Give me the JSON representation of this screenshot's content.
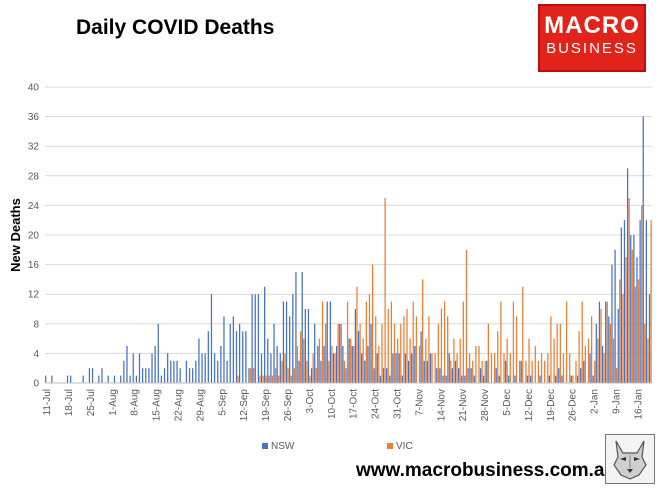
{
  "header": {
    "title": "Daily COVID Deaths"
  },
  "logo": {
    "line1": "MACRO",
    "line2": "BUSINESS"
  },
  "footer": {
    "website": "www.macrobusiness.com.au"
  },
  "colors": {
    "nsw": "#4472c4",
    "vic": "#ed7d31",
    "grid": "#d9d9d9",
    "axis": "#bfbfbf",
    "text": "#595959"
  },
  "chart_data": {
    "type": "bar",
    "ylabel": "New Deaths",
    "xlabel": "",
    "ylim": [
      0,
      40
    ],
    "yticks": [
      0,
      4,
      8,
      12,
      16,
      20,
      24,
      28,
      32,
      36,
      40
    ],
    "grid": true,
    "legend_position": "bottom",
    "start_date": "11-Jul",
    "days": 194,
    "xtick_labels": [
      "11-Jul",
      "18-Jul",
      "25-Jul",
      "1-Aug",
      "8-Aug",
      "15-Aug",
      "22-Aug",
      "29-Aug",
      "5-Sep",
      "12-Sep",
      "19-Sep",
      "26-Sep",
      "3-Oct",
      "10-Oct",
      "17-Oct",
      "24-Oct",
      "31-Oct",
      "7-Nov",
      "14-Nov",
      "21-Nov",
      "28-Nov",
      "5-Dec",
      "12-Dec",
      "19-Dec",
      "26-Dec",
      "2-Jan",
      "9-Jan",
      "16-Jan"
    ],
    "series": [
      {
        "name": "NSW",
        "color": "#4472c4",
        "values": [
          1,
          0,
          1,
          0,
          0,
          0,
          0,
          1,
          1,
          0,
          0,
          0,
          1,
          0,
          2,
          2,
          0,
          1,
          2,
          0,
          1,
          0,
          1,
          0,
          1,
          3,
          5,
          1,
          4,
          1,
          4,
          2,
          2,
          2,
          4,
          5,
          8,
          1,
          2,
          4,
          3,
          3,
          3,
          2,
          0,
          3,
          2,
          2,
          3,
          6,
          4,
          4,
          7,
          12,
          4,
          3,
          5,
          9,
          3,
          8,
          9,
          7,
          8,
          7,
          7,
          2,
          12,
          12,
          12,
          4,
          13,
          6,
          4,
          8,
          5,
          4,
          11,
          11,
          9,
          12,
          15,
          3,
          15,
          10,
          10,
          2,
          8,
          5,
          3,
          5,
          11,
          11,
          4,
          5,
          8,
          5,
          2,
          6,
          5,
          10,
          7,
          4,
          3,
          5,
          8,
          2,
          4,
          1,
          2,
          2,
          1,
          4,
          4,
          4,
          1,
          4,
          3,
          4,
          5,
          0,
          7,
          3,
          3,
          4,
          0,
          2,
          2,
          1,
          1,
          4,
          2,
          3,
          2,
          1,
          1,
          2,
          2,
          1,
          0,
          2,
          1,
          3,
          0,
          0,
          2,
          1,
          0,
          3,
          1,
          0,
          1,
          0,
          3,
          0,
          1,
          1,
          0,
          0,
          1,
          0,
          0,
          1,
          0,
          1,
          2,
          1,
          0,
          0,
          1,
          0,
          1,
          2,
          3,
          0,
          4,
          1,
          8,
          11,
          5,
          11,
          9,
          16,
          18,
          10,
          21,
          22,
          29,
          20,
          20,
          17,
          22,
          36,
          22,
          12
        ]
      },
      {
        "name": "VIC",
        "color": "#ed7d31",
        "values": [
          0,
          0,
          0,
          0,
          0,
          0,
          0,
          0,
          0,
          0,
          0,
          0,
          0,
          0,
          0,
          0,
          0,
          0,
          0,
          0,
          0,
          0,
          0,
          0,
          0,
          0,
          0,
          0,
          0,
          0,
          0,
          0,
          0,
          0,
          0,
          0,
          0,
          0,
          0,
          0,
          0,
          0,
          0,
          0,
          0,
          0,
          0,
          0,
          0,
          0,
          0,
          0,
          0,
          0,
          0,
          0,
          0,
          0,
          0,
          0,
          0,
          1,
          0,
          0,
          0,
          2,
          2,
          0,
          1,
          1,
          1,
          1,
          1,
          2,
          1,
          3,
          4,
          2,
          1,
          2,
          5,
          7,
          6,
          3,
          1,
          4,
          2,
          6,
          11,
          8,
          3,
          5,
          4,
          8,
          8,
          3,
          11,
          6,
          5,
          13,
          8,
          6,
          11,
          12,
          16,
          9,
          5,
          8,
          25,
          10,
          11,
          8,
          6,
          8,
          9,
          10,
          6,
          11,
          9,
          5,
          14,
          6,
          9,
          4,
          4,
          8,
          10,
          11,
          9,
          3,
          6,
          4,
          6,
          11,
          18,
          4,
          3,
          5,
          5,
          3,
          3,
          8,
          4,
          4,
          7,
          11,
          4,
          6,
          4,
          11,
          9,
          3,
          13,
          3,
          6,
          3,
          5,
          3,
          4,
          3,
          4,
          9,
          6,
          8,
          8,
          4,
          11,
          4,
          1,
          3,
          7,
          11,
          5,
          6,
          9,
          3,
          6,
          10,
          4,
          11,
          8,
          6,
          2,
          14,
          12,
          17,
          25,
          18,
          13,
          14,
          24,
          8,
          6,
          22
        ]
      }
    ]
  }
}
